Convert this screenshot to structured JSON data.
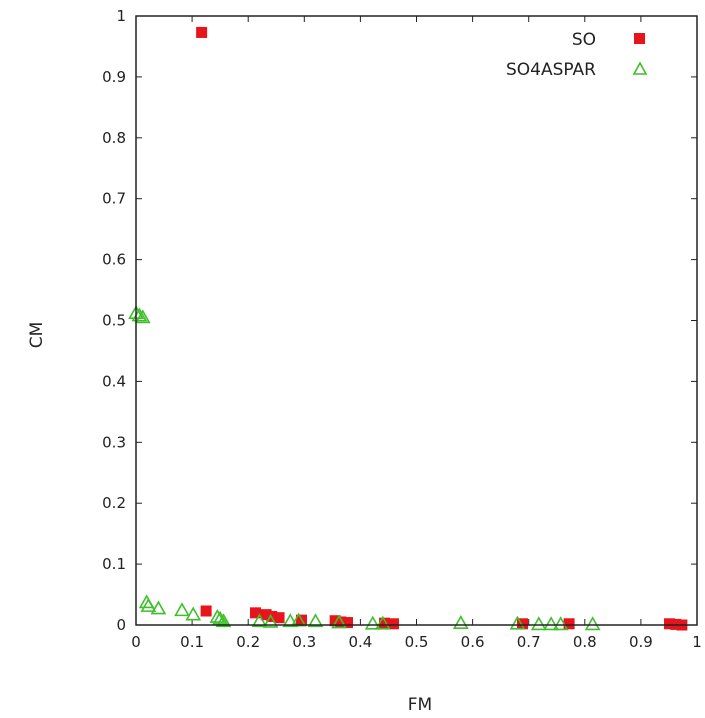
{
  "chart_data": {
    "type": "scatter",
    "title": "",
    "xlabel": "FM",
    "ylabel": "CM",
    "xlim": [
      0,
      1
    ],
    "ylim": [
      0,
      1
    ],
    "x_ticks": [
      "0",
      "0.1",
      "0.2",
      "0.3",
      "0.4",
      "0.5",
      "0.6",
      "0.7",
      "0.8",
      "0.9",
      "1"
    ],
    "y_ticks": [
      "0",
      "0.1",
      "0.2",
      "0.3",
      "0.4",
      "0.5",
      "0.6",
      "0.7",
      "0.8",
      "0.9",
      "1"
    ],
    "grid": false,
    "legend_position": "top-right",
    "series": [
      {
        "name": "SO",
        "color": "#e8141b",
        "marker": "filled-square",
        "points": [
          {
            "x": 0.117,
            "y": 0.973
          },
          {
            "x": 0.125,
            "y": 0.023
          },
          {
            "x": 0.213,
            "y": 0.02
          },
          {
            "x": 0.232,
            "y": 0.017
          },
          {
            "x": 0.242,
            "y": 0.014
          },
          {
            "x": 0.255,
            "y": 0.012
          },
          {
            "x": 0.295,
            "y": 0.008
          },
          {
            "x": 0.355,
            "y": 0.007
          },
          {
            "x": 0.365,
            "y": 0.005
          },
          {
            "x": 0.377,
            "y": 0.004
          },
          {
            "x": 0.443,
            "y": 0.003
          },
          {
            "x": 0.459,
            "y": 0.002
          },
          {
            "x": 0.689,
            "y": 0.002
          },
          {
            "x": 0.772,
            "y": 0.002
          },
          {
            "x": 0.951,
            "y": 0.002
          },
          {
            "x": 0.962,
            "y": 0.001
          },
          {
            "x": 0.973,
            "y": 0.0
          }
        ]
      },
      {
        "name": "SO4ASPAR",
        "color": "#3fbf2c",
        "marker": "open-triangle",
        "points": [
          {
            "x": 0.0,
            "y": 0.512
          },
          {
            "x": 0.006,
            "y": 0.508
          },
          {
            "x": 0.012,
            "y": 0.505
          },
          {
            "x": 0.019,
            "y": 0.037
          },
          {
            "x": 0.022,
            "y": 0.031
          },
          {
            "x": 0.04,
            "y": 0.027
          },
          {
            "x": 0.082,
            "y": 0.024
          },
          {
            "x": 0.102,
            "y": 0.017
          },
          {
            "x": 0.145,
            "y": 0.013
          },
          {
            "x": 0.15,
            "y": 0.01
          },
          {
            "x": 0.156,
            "y": 0.006
          },
          {
            "x": 0.22,
            "y": 0.006
          },
          {
            "x": 0.24,
            "y": 0.005
          },
          {
            "x": 0.275,
            "y": 0.006
          },
          {
            "x": 0.29,
            "y": 0.007
          },
          {
            "x": 0.32,
            "y": 0.006
          },
          {
            "x": 0.362,
            "y": 0.004
          },
          {
            "x": 0.422,
            "y": 0.002
          },
          {
            "x": 0.44,
            "y": 0.002
          },
          {
            "x": 0.579,
            "y": 0.003
          },
          {
            "x": 0.68,
            "y": 0.002
          },
          {
            "x": 0.718,
            "y": 0.001
          },
          {
            "x": 0.74,
            "y": 0.001
          },
          {
            "x": 0.757,
            "y": 0.001
          },
          {
            "x": 0.814,
            "y": 0.001
          }
        ]
      }
    ]
  }
}
